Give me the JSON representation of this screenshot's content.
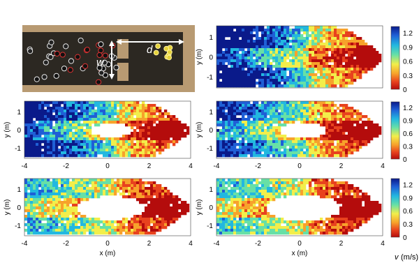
{
  "photo": {
    "label_w": "w",
    "label_d": "d"
  },
  "axes": {
    "x_label": "x (m)",
    "y_label": "y (m)",
    "x_ticks": [
      "-4",
      "-2",
      "0",
      "2",
      "4"
    ],
    "y_ticks": [
      "-1",
      "0",
      "1"
    ]
  },
  "colorbar": {
    "ticks": [
      "1.2",
      "0.9",
      "0.6",
      "0.3",
      "0"
    ],
    "label_v": "v",
    "label_unit": "(m/s)",
    "colors": [
      "#0a1a8a",
      "#1f5fd6",
      "#22b8e0",
      "#67e0a6",
      "#f2ee4a",
      "#f7a22b",
      "#e8421e",
      "#b40c0c"
    ]
  },
  "panels": [
    {
      "id": "top-right",
      "hole": 0,
      "blue_strength": 1.0
    },
    {
      "id": "mid-left",
      "hole": 0.35,
      "blue_strength": 0.9
    },
    {
      "id": "mid-right",
      "hole": 0.45,
      "blue_strength": 0.8
    },
    {
      "id": "bottom-left",
      "hole": 0.75,
      "blue_strength": 0.55
    },
    {
      "id": "bottom-right",
      "hole": 0.85,
      "blue_strength": 0.5
    }
  ]
}
